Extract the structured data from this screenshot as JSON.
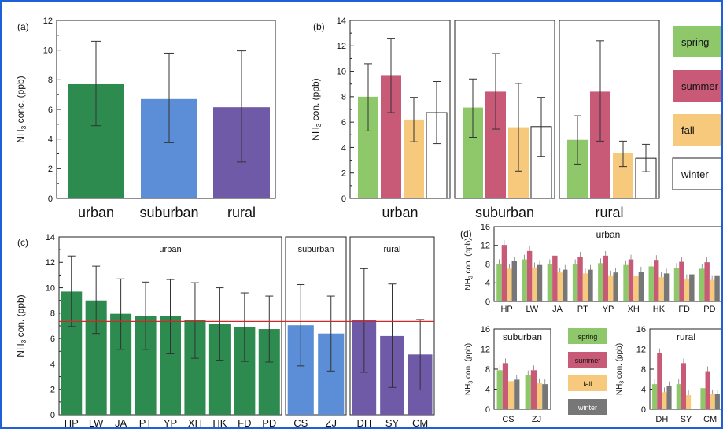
{
  "colors": {
    "urban": "#2e8b4f",
    "suburban": "#5b8ed6",
    "rural": "#6f5aa7",
    "spring": "#8ec86a",
    "summer": "#c85a78",
    "fall": "#f6c97c",
    "winter": "#ffffff",
    "winter_d": "#777777",
    "refline": "#cc2a2a",
    "frame": "#1f5fd8"
  },
  "chart_data": [
    {
      "panel": "(a)",
      "type": "bar",
      "ylabel_main": "NH",
      "ylabel_sub": "3",
      "ylabel_rest": " conc. (ppb)",
      "ylim": [
        0,
        12
      ],
      "yticks": [
        "0",
        "2",
        "4",
        "6",
        "8",
        "10",
        "12"
      ],
      "categories": [
        "urban",
        "suburban",
        "rural"
      ],
      "values": [
        7.7,
        6.7,
        6.15
      ],
      "error": [
        [
          4.9,
          10.6
        ],
        [
          3.75,
          9.8
        ],
        [
          2.45,
          9.95
        ]
      ]
    },
    {
      "panel": "(b)",
      "type": "bar",
      "ylabel_main": "NH",
      "ylabel_sub": "3",
      "ylabel_rest": " con. (ppb)",
      "ylim": [
        0,
        14
      ],
      "yticks": [
        "0",
        "2",
        "4",
        "6",
        "8",
        "10",
        "12",
        "14"
      ],
      "groups": [
        "urban",
        "suburban",
        "rural"
      ],
      "legend": [
        "spring",
        "summer",
        "fall",
        "winter"
      ],
      "series": [
        {
          "name": "spring",
          "values": [
            8.0,
            7.15,
            4.6
          ],
          "error": [
            [
              5.3,
              10.6
            ],
            [
              4.8,
              9.4
            ],
            [
              2.7,
              6.5
            ]
          ]
        },
        {
          "name": "summer",
          "values": [
            9.7,
            8.4,
            8.4
          ],
          "error": [
            [
              6.75,
              12.6
            ],
            [
              5.45,
              11.4
            ],
            [
              4.5,
              12.4
            ]
          ]
        },
        {
          "name": "fall",
          "values": [
            6.2,
            5.6,
            3.55
          ],
          "error": [
            [
              4.45,
              7.95
            ],
            [
              2.15,
              9.05
            ],
            [
              2.5,
              4.5
            ]
          ]
        },
        {
          "name": "winter",
          "values": [
            6.75,
            5.65,
            3.15
          ],
          "error": [
            [
              4.3,
              9.2
            ],
            [
              3.3,
              7.95
            ],
            [
              2.1,
              4.25
            ]
          ]
        }
      ]
    },
    {
      "panel": "(c)",
      "type": "bar",
      "ylabel_main": "NH",
      "ylabel_sub": "3",
      "ylabel_rest": " con. (ppb)",
      "ylim": [
        0,
        14
      ],
      "yticks": [
        "0",
        "2",
        "4",
        "6",
        "8",
        "10",
        "12",
        "14"
      ],
      "reference_line": 7.35,
      "groups": [
        {
          "label": "urban",
          "categories": [
            "HP",
            "LW",
            "JA",
            "PT",
            "YP",
            "XH",
            "HK",
            "FD",
            "PD"
          ],
          "values": [
            9.7,
            9.0,
            7.95,
            7.8,
            7.75,
            7.45,
            7.15,
            6.9,
            6.75
          ],
          "error": [
            [
              6.95,
              12.5
            ],
            [
              6.4,
              11.7
            ],
            [
              5.15,
              10.7
            ],
            [
              5.15,
              10.45
            ],
            [
              4.8,
              10.65
            ],
            [
              4.45,
              10.4
            ],
            [
              4.3,
              10.0
            ],
            [
              4.2,
              9.6
            ],
            [
              4.15,
              9.35
            ]
          ]
        },
        {
          "label": "suburban",
          "categories": [
            "CS",
            "ZJ"
          ],
          "values": [
            7.05,
            6.4
          ],
          "error": [
            [
              3.85,
              10.25
            ],
            [
              3.45,
              9.35
            ]
          ]
        },
        {
          "label": "rural",
          "categories": [
            "DH",
            "SY",
            "CM"
          ],
          "values": [
            7.45,
            6.2,
            4.75
          ],
          "error": [
            [
              3.35,
              11.5
            ],
            [
              2.15,
              10.3
            ],
            [
              1.95,
              7.5
            ]
          ]
        }
      ]
    },
    {
      "panel": "(d)",
      "type": "bar",
      "ylabel_main": "NH",
      "ylabel_sub": "3",
      "ylabel_rest": " con. (ppb)",
      "ylim": [
        0,
        16
      ],
      "yticks": [
        "0",
        "4",
        "8",
        "12",
        "16"
      ],
      "legend": [
        "spring",
        "summer",
        "fall",
        "winter"
      ],
      "groups": [
        {
          "label": "urban",
          "categories": [
            "HP",
            "LW",
            "JA",
            "PT",
            "YP",
            "XH",
            "HK",
            "FD",
            "PD"
          ],
          "series": {
            "spring": [
              8.0,
              9.0,
              8.0,
              8.0,
              8.2,
              7.8,
              7.5,
              7.2,
              7.0
            ],
            "summer": [
              12.1,
              10.8,
              9.8,
              9.6,
              9.8,
              9.0,
              8.9,
              8.5,
              8.4
            ],
            "fall": [
              7.0,
              7.3,
              6.2,
              6.0,
              5.6,
              5.4,
              5.2,
              4.8,
              4.6
            ],
            "winter": [
              8.6,
              7.8,
              6.8,
              6.8,
              6.2,
              6.4,
              6.0,
              5.8,
              5.6
            ]
          }
        },
        {
          "label": "suburban",
          "categories": [
            "CS",
            "ZJ"
          ],
          "series": {
            "spring": [
              7.8,
              6.8
            ],
            "summer": [
              9.2,
              7.8
            ],
            "fall": [
              5.6,
              5.2
            ],
            "winter": [
              5.9,
              5.0
            ]
          }
        },
        {
          "label": "rural",
          "categories": [
            "DH",
            "SY",
            "CM"
          ],
          "series": {
            "spring": [
              5.0,
              5.0,
              4.2
            ],
            "summer": [
              11.2,
              9.2,
              7.6
            ],
            "fall": [
              3.4,
              2.8,
              3.0
            ],
            "winter": [
              4.6,
              0,
              3.0
            ]
          }
        }
      ]
    }
  ]
}
